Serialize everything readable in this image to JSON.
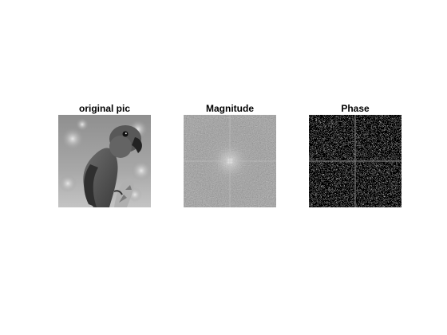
{
  "figure": {
    "panels": [
      {
        "title": "original pic",
        "content": "grayscale photo of a parrot"
      },
      {
        "title": "Magnitude",
        "content": "FFT magnitude spectrum"
      },
      {
        "title": "Phase",
        "content": "FFT phase spectrum"
      }
    ]
  }
}
